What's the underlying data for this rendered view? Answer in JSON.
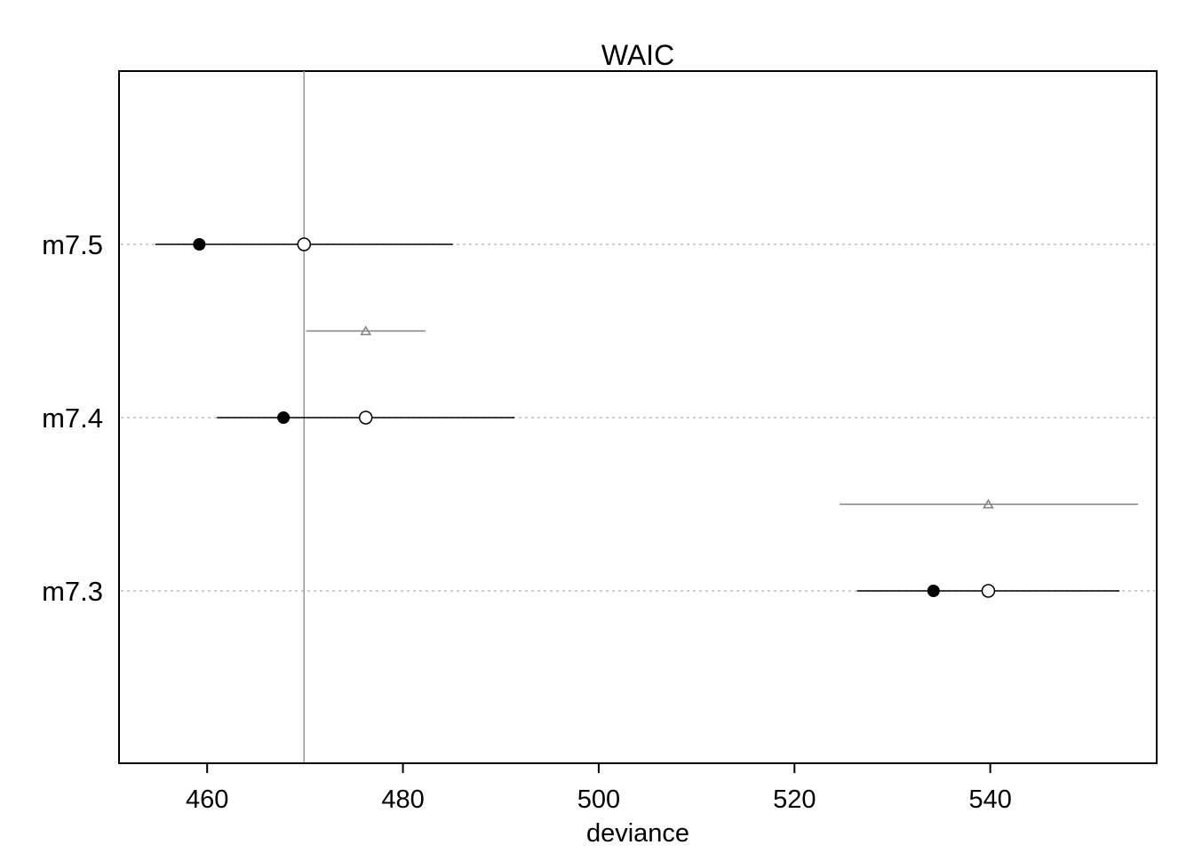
{
  "chart_data": {
    "type": "dot-interval",
    "title": "WAIC",
    "xlabel": "deviance",
    "ylabel": "",
    "xlim": [
      451,
      557
    ],
    "x_ticks": [
      460,
      480,
      500,
      520,
      540
    ],
    "x_tick_labels": [
      "460",
      "480",
      "500",
      "520",
      "540"
    ],
    "reference_line": 469.9,
    "grid": "horizontal dotted lines at model rows",
    "models": [
      {
        "label": "m7.5",
        "in_sample": 459.2,
        "waic": 469.9,
        "waic_interval": [
          454.7,
          485.1
        ]
      },
      {
        "label": "m7.4",
        "in_sample": 467.8,
        "waic": 476.2,
        "waic_interval": [
          461.0,
          491.4
        ],
        "difference": 476.2,
        "difference_interval": [
          470.1,
          482.3
        ]
      },
      {
        "label": "m7.3",
        "in_sample": 534.2,
        "waic": 539.8,
        "waic_interval": [
          526.4,
          553.2
        ],
        "difference": 539.8,
        "difference_interval": [
          524.6,
          555.1
        ]
      }
    ],
    "colors": {
      "point": "#000000",
      "interval": "#000000",
      "difference": "#808080",
      "reference_line": "#999999",
      "gridline": "#bebebe"
    }
  }
}
